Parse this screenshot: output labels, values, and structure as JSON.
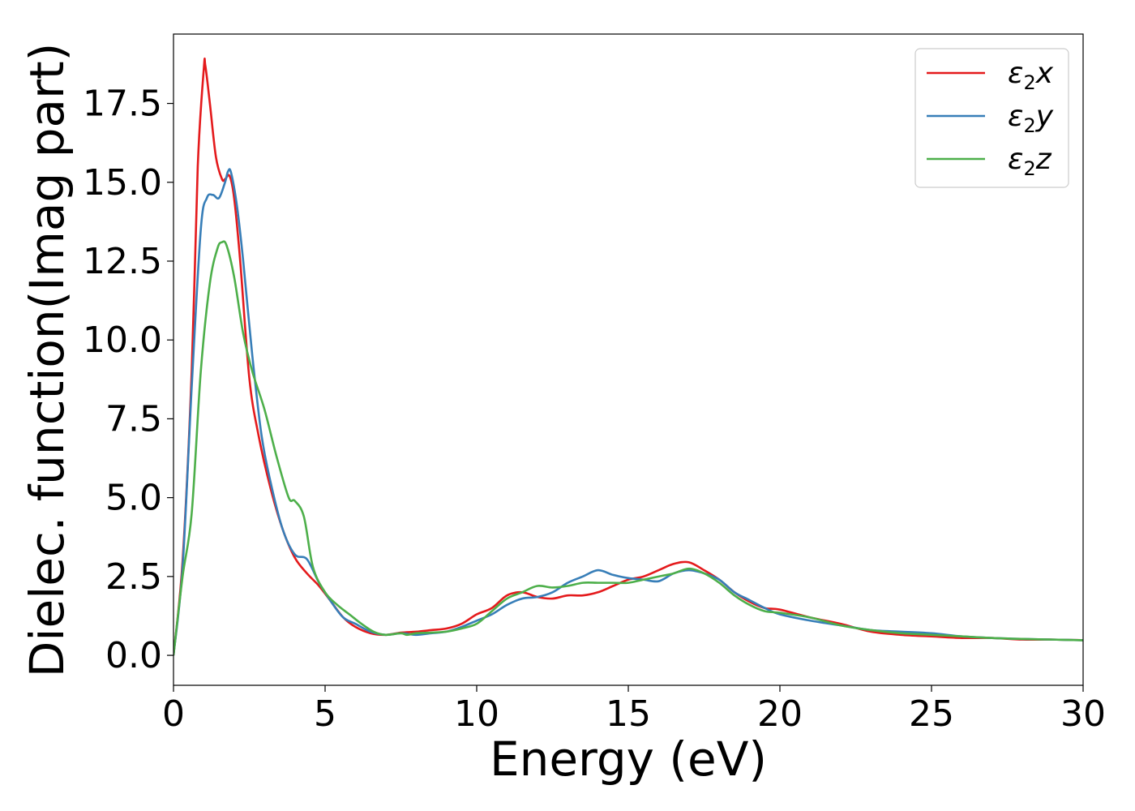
{
  "chart_data": {
    "type": "line",
    "title": "",
    "xlabel": "Energy (eV)",
    "ylabel": "Dielec. function(Imag part)",
    "xlim": [
      0,
      30
    ],
    "ylim": [
      -0.95,
      19.7
    ],
    "xticks": [
      0,
      5,
      10,
      15,
      20,
      25,
      30
    ],
    "xtick_labels": [
      "0",
      "5",
      "10",
      "15",
      "20",
      "25",
      "30"
    ],
    "yticks": [
      0.0,
      2.5,
      5.0,
      7.5,
      10.0,
      12.5,
      15.0,
      17.5
    ],
    "ytick_labels": [
      "0.0",
      "2.5",
      "5.0",
      "7.5",
      "10.0",
      "12.5",
      "15.0",
      "17.5"
    ],
    "grid": false,
    "legend_position": "top-right",
    "series": [
      {
        "name": "ε2x",
        "legend_base": "ε",
        "legend_sub": "2",
        "legend_tail": "x",
        "color": "#e41a1c",
        "x": [
          0,
          0.3,
          0.6,
          0.8,
          1.0,
          1.05,
          1.2,
          1.4,
          1.6,
          1.7,
          1.85,
          2.0,
          2.2,
          2.5,
          2.8,
          3.2,
          3.6,
          4.0,
          4.4,
          4.8,
          5.2,
          5.6,
          6.0,
          6.5,
          7.0,
          7.5,
          8.0,
          8.5,
          9.0,
          9.5,
          10.0,
          10.5,
          11.0,
          11.5,
          12.0,
          12.5,
          13.0,
          13.5,
          14.0,
          14.5,
          15.0,
          15.5,
          16.0,
          16.5,
          17.0,
          17.5,
          18.0,
          18.5,
          19.0,
          19.5,
          20.0,
          21.0,
          22.0,
          23.0,
          24.0,
          25.0,
          26.0,
          27.0,
          28.0,
          29.0,
          30.0
        ],
        "values": [
          0.0,
          3.0,
          9.0,
          15.5,
          18.6,
          18.7,
          17.5,
          15.8,
          15.1,
          15.1,
          15.2,
          14.5,
          12.5,
          8.8,
          7.0,
          5.3,
          4.0,
          3.1,
          2.6,
          2.2,
          1.7,
          1.2,
          0.9,
          0.7,
          0.65,
          0.72,
          0.75,
          0.8,
          0.85,
          1.0,
          1.3,
          1.5,
          1.9,
          2.0,
          1.85,
          1.8,
          1.9,
          1.9,
          2.0,
          2.2,
          2.4,
          2.5,
          2.7,
          2.9,
          2.95,
          2.7,
          2.4,
          2.0,
          1.7,
          1.5,
          1.45,
          1.2,
          1.0,
          0.75,
          0.65,
          0.6,
          0.55,
          0.55,
          0.5,
          0.5,
          0.48
        ]
      },
      {
        "name": "ε2y",
        "legend_base": "ε",
        "legend_sub": "2",
        "legend_tail": "y",
        "color": "#377eb8",
        "x": [
          0,
          0.3,
          0.6,
          0.9,
          1.1,
          1.3,
          1.5,
          1.7,
          1.8,
          1.9,
          2.1,
          2.3,
          2.6,
          2.9,
          3.2,
          3.6,
          4.0,
          4.4,
          4.8,
          5.2,
          5.6,
          6.0,
          6.5,
          7.0,
          7.5,
          8.0,
          8.5,
          9.0,
          9.5,
          10.0,
          10.5,
          11.0,
          11.5,
          12.0,
          12.5,
          13.0,
          13.5,
          14.0,
          14.5,
          15.0,
          15.5,
          16.0,
          16.5,
          17.0,
          17.5,
          18.0,
          18.5,
          19.0,
          19.5,
          20.0,
          21.0,
          22.0,
          23.0,
          24.0,
          25.0,
          26.0,
          27.0,
          28.0,
          29.0,
          30.0
        ],
        "values": [
          0.0,
          2.8,
          8.5,
          13.5,
          14.5,
          14.6,
          14.5,
          15.0,
          15.35,
          15.3,
          14.2,
          12.5,
          9.5,
          7.0,
          5.5,
          4.0,
          3.2,
          3.05,
          2.3,
          1.7,
          1.2,
          1.0,
          0.75,
          0.65,
          0.7,
          0.65,
          0.7,
          0.75,
          0.9,
          1.1,
          1.3,
          1.6,
          1.8,
          1.85,
          2.0,
          2.3,
          2.5,
          2.7,
          2.55,
          2.45,
          2.4,
          2.35,
          2.6,
          2.7,
          2.6,
          2.4,
          2.0,
          1.75,
          1.5,
          1.3,
          1.1,
          0.95,
          0.8,
          0.75,
          0.7,
          0.6,
          0.55,
          0.52,
          0.5,
          0.48
        ]
      },
      {
        "name": "ε2z",
        "legend_base": "ε",
        "legend_sub": "2",
        "legend_tail": "z",
        "color": "#4daf4a",
        "x": [
          0,
          0.3,
          0.6,
          0.9,
          1.2,
          1.45,
          1.6,
          1.75,
          2.0,
          2.3,
          2.6,
          3.0,
          3.4,
          3.8,
          4.0,
          4.3,
          4.6,
          5.0,
          5.4,
          5.8,
          6.2,
          6.6,
          7.0,
          7.5,
          7.7,
          8.0,
          8.5,
          9.0,
          9.5,
          10.0,
          10.5,
          11.0,
          11.5,
          12.0,
          12.5,
          13.0,
          13.5,
          14.0,
          14.5,
          15.0,
          15.5,
          16.0,
          16.5,
          17.0,
          17.5,
          18.0,
          18.5,
          19.0,
          19.5,
          20.0,
          21.0,
          22.0,
          23.0,
          24.0,
          25.0,
          26.0,
          27.0,
          28.0,
          29.0,
          30.0
        ],
        "values": [
          0.0,
          2.5,
          4.5,
          9.0,
          11.8,
          12.9,
          13.1,
          13.0,
          12.0,
          10.2,
          9.0,
          7.8,
          6.3,
          5.0,
          4.9,
          4.4,
          2.8,
          2.0,
          1.6,
          1.3,
          1.0,
          0.75,
          0.65,
          0.7,
          0.65,
          0.7,
          0.72,
          0.75,
          0.85,
          1.0,
          1.4,
          1.8,
          2.0,
          2.2,
          2.15,
          2.2,
          2.3,
          2.3,
          2.3,
          2.3,
          2.4,
          2.5,
          2.6,
          2.75,
          2.6,
          2.3,
          1.9,
          1.6,
          1.4,
          1.35,
          1.2,
          0.95,
          0.8,
          0.7,
          0.65,
          0.6,
          0.55,
          0.52,
          0.5,
          0.48
        ]
      }
    ]
  }
}
